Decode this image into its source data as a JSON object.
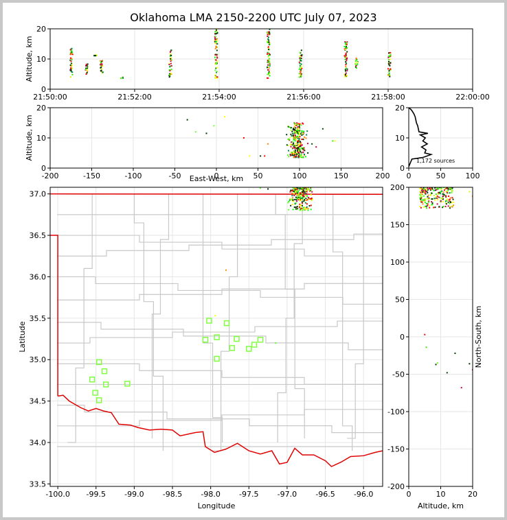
{
  "title": "Oklahoma LMA 2150-2200 UTC July 07, 2023",
  "source_count_text": "1,172 sources",
  "colors": {
    "state_border": "#e00000",
    "county_lines": "#c8c8c8",
    "station": "#80ff40"
  },
  "chart_data": [
    {
      "id": "time_height",
      "type": "scatter",
      "title": "",
      "xlabel": "",
      "ylabel": "Altitude, km",
      "xlim": [
        "21:50:00",
        "22:00:00"
      ],
      "ylim": [
        0,
        20
      ],
      "xticks": [
        "21:50:00",
        "21:52:00",
        "21:54:00",
        "21:56:00",
        "21:58:00",
        "22:00:00"
      ],
      "yticks": [
        "0",
        "10",
        "20"
      ],
      "bursts": [
        {
          "t": 0.5,
          "zmin": 4,
          "zmax": 13.5
        },
        {
          "t": 0.87,
          "zmin": 5,
          "zmax": 9
        },
        {
          "t": 1.07,
          "zmin": 11,
          "zmax": 11.5
        },
        {
          "t": 1.22,
          "zmin": 4,
          "zmax": 9.5
        },
        {
          "t": 1.7,
          "zmin": 3.5,
          "zmax": 4
        },
        {
          "t": 2.85,
          "zmin": 4,
          "zmax": 13
        },
        {
          "t": 3.93,
          "zmin": 3.5,
          "zmax": 20
        },
        {
          "t": 5.17,
          "zmin": 3.5,
          "zmax": 20
        },
        {
          "t": 5.93,
          "zmin": 4,
          "zmax": 13.5
        },
        {
          "t": 7.0,
          "zmin": 3.5,
          "zmax": 16
        },
        {
          "t": 7.25,
          "zmin": 7,
          "zmax": 10.5
        },
        {
          "t": 8.03,
          "zmin": 4,
          "zmax": 12.5
        }
      ]
    },
    {
      "id": "ew_height",
      "type": "scatter",
      "title": "",
      "xlabel": "East-West, km",
      "ylabel": "Altitude, km",
      "xlim": [
        -200,
        200
      ],
      "ylim": [
        0,
        20
      ],
      "xticks": [
        "-200",
        "-150",
        "-100",
        "-50",
        "0",
        "50",
        "100",
        "150",
        "200"
      ],
      "yticks": [
        "0",
        "10",
        "20"
      ],
      "main_cluster": {
        "x_range": [
          82,
          112
        ],
        "z_range": [
          3.5,
          15
        ]
      },
      "outliers": [
        [
          -35,
          16
        ],
        [
          -25,
          12
        ],
        [
          -12,
          11.5
        ],
        [
          -3,
          14
        ],
        [
          33,
          10
        ],
        [
          40,
          4
        ],
        [
          53,
          4
        ],
        [
          58,
          4
        ],
        [
          62,
          8
        ],
        [
          110,
          5
        ],
        [
          115,
          8
        ],
        [
          120,
          7
        ],
        [
          128,
          13
        ],
        [
          140,
          9
        ],
        [
          143,
          9
        ],
        [
          10,
          17
        ]
      ]
    },
    {
      "id": "alt_histogram",
      "type": "line",
      "title": "",
      "xlabel": "",
      "ylabel": "",
      "xlim": [
        0,
        100
      ],
      "ylim": [
        0,
        20
      ],
      "xticks": [
        "0",
        "50",
        "100"
      ],
      "yticks": [
        "0",
        "10",
        "20"
      ],
      "profile": [
        [
          0,
          0.5
        ],
        [
          3,
          2
        ],
        [
          5,
          3
        ],
        [
          22,
          3.5
        ],
        [
          35,
          4.5
        ],
        [
          25,
          5
        ],
        [
          27,
          6
        ],
        [
          20,
          7
        ],
        [
          29,
          8
        ],
        [
          22,
          9
        ],
        [
          26,
          10
        ],
        [
          18,
          11
        ],
        [
          30,
          11.5
        ],
        [
          16,
          12
        ],
        [
          15,
          13
        ],
        [
          14,
          14
        ],
        [
          12,
          15
        ],
        [
          11,
          16
        ],
        [
          10,
          17
        ],
        [
          8,
          18
        ],
        [
          5,
          19
        ],
        [
          3,
          19.5
        ],
        [
          0,
          20
        ]
      ]
    },
    {
      "id": "plan_view",
      "type": "scatter",
      "title": "",
      "xlabel": "Longitude",
      "ylabel": "Latitude",
      "xlim": [
        -100.1,
        -95.75
      ],
      "ylim": [
        33.47,
        37.08
      ],
      "xticks": [
        "-100.0",
        "-99.5",
        "-99.0",
        "-98.5",
        "-98.0",
        "-97.5",
        "-97.0",
        "-96.5",
        "-96.0"
      ],
      "yticks": [
        "33.5",
        "34.0",
        "34.5",
        "35.0",
        "35.5",
        "36.0",
        "36.5",
        "37.0"
      ],
      "stations": [
        [
          -98.02,
          35.47
        ],
        [
          -97.79,
          35.44
        ],
        [
          -98.07,
          35.24
        ],
        [
          -97.92,
          35.27
        ],
        [
          -97.66,
          35.25
        ],
        [
          -97.35,
          35.24
        ],
        [
          -97.43,
          35.18
        ],
        [
          -97.72,
          35.14
        ],
        [
          -97.5,
          35.13
        ],
        [
          -97.92,
          35.01
        ],
        [
          -99.46,
          34.97
        ],
        [
          -99.39,
          34.86
        ],
        [
          -99.55,
          34.76
        ],
        [
          -99.37,
          34.7
        ],
        [
          -99.09,
          34.71
        ],
        [
          -99.51,
          34.6
        ],
        [
          -99.46,
          34.51
        ]
      ],
      "main_cluster": {
        "lon_range": [
          -97.0,
          -96.65
        ],
        "lat_range": [
          36.8,
          37.08
        ]
      },
      "outliers": [
        [
          -97.25,
          37.06
        ],
        [
          -97.35,
          37.07
        ],
        [
          -97.8,
          36.08
        ],
        [
          -97.94,
          35.53
        ],
        [
          -97.15,
          35.2
        ]
      ]
    },
    {
      "id": "ns_height",
      "type": "scatter",
      "title": "",
      "xlabel": "Altitude, km",
      "ylabel": "North-South, km",
      "xlim": [
        0,
        20
      ],
      "ylim": [
        -200,
        200
      ],
      "xticks": [
        "0",
        "10",
        "20"
      ],
      "yticks": [
        "-200",
        "-150",
        "-100",
        "-50",
        "0",
        "50",
        "100",
        "150",
        "200"
      ],
      "main_cluster": {
        "z_range": [
          3.5,
          14
        ],
        "y_range": [
          172,
          200
        ]
      },
      "outliers": [
        [
          13,
          174
        ],
        [
          14,
          176
        ],
        [
          20,
          188
        ],
        [
          19,
          194
        ],
        [
          5,
          3
        ],
        [
          5.5,
          -14
        ],
        [
          8.5,
          -37
        ],
        [
          9,
          -35
        ],
        [
          14.5,
          -22
        ],
        [
          12,
          -48
        ],
        [
          19,
          -36
        ],
        [
          16.5,
          -68
        ],
        [
          20,
          -44
        ]
      ]
    }
  ]
}
